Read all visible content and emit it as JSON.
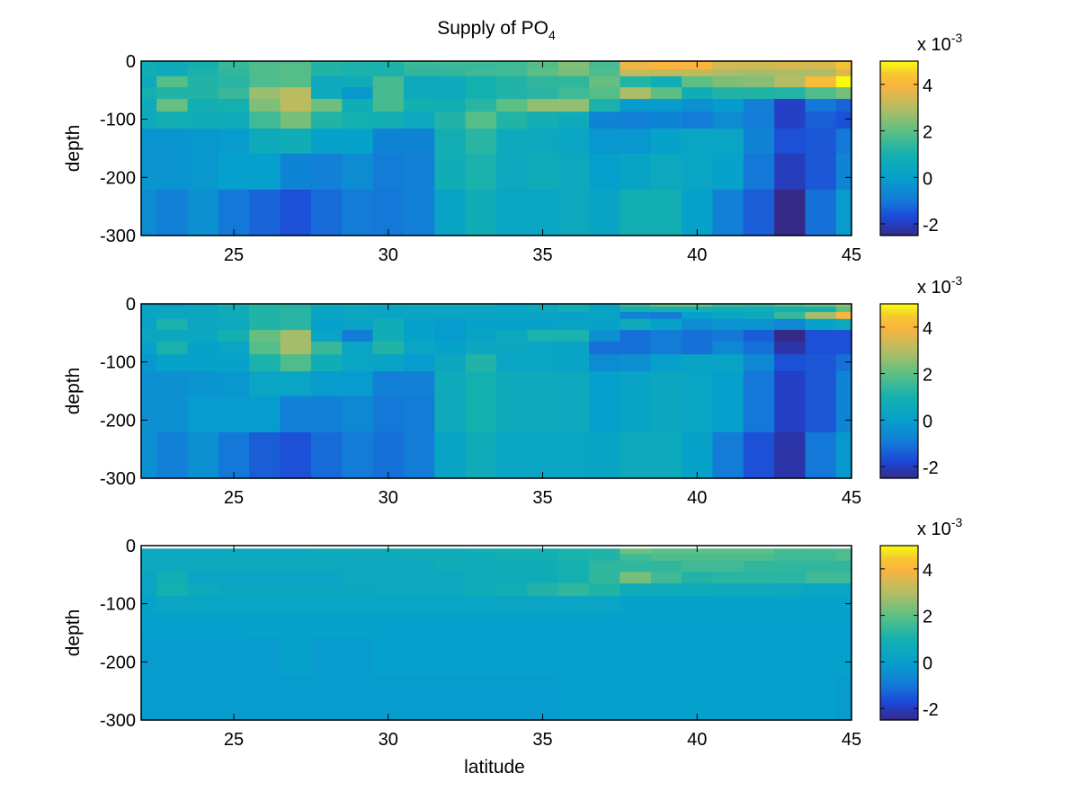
{
  "chart_data": {
    "type": "heatmap",
    "title": "Supply of PO",
    "title_subscript": "4",
    "xlabel": "latitude",
    "ylabel": "depth",
    "xlim": [
      22,
      45
    ],
    "ylim": [
      -300,
      0
    ],
    "xticks": [
      25,
      30,
      35,
      40,
      45
    ],
    "xtick_labels": [
      "25",
      "30",
      "35",
      "40",
      "45"
    ],
    "yticks": [
      0,
      -100,
      -200,
      -300
    ],
    "ytick_labels": [
      "0",
      "-100",
      "-200",
      "-300"
    ],
    "colorbar": {
      "colormap": "parula",
      "clim": [
        -2.5,
        5
      ],
      "ticks": [
        -2,
        0,
        2,
        4
      ],
      "tick_labels": [
        "-2",
        "0",
        "2",
        "4"
      ],
      "scale_label": "x 10",
      "scale_exponent": "-3"
    },
    "value_units": "x 1e-3",
    "latitudes": [
      22,
      23,
      24,
      25,
      26,
      27,
      28,
      29,
      30,
      31,
      32,
      33,
      34,
      35,
      36,
      37,
      38,
      39,
      40,
      41,
      42,
      43,
      44,
      45
    ],
    "depth_edges": [
      0,
      -5,
      -14,
      -26,
      -45,
      -65,
      -87,
      -116,
      -159,
      -221,
      -300
    ],
    "panels": [
      {
        "name": "panel-1",
        "values": [
          [
            0.8,
            0.6,
            1.0,
            1.5,
            1.8,
            1.8,
            1.3,
            1.2,
            1.2,
            1.6,
            1.7,
            1.7,
            1.6,
            1.9,
            2.4,
            1.7,
            3.8,
            4.0,
            4.0,
            3.4,
            3.4,
            3.5,
            3.5,
            4.3
          ],
          [
            0.8,
            0.6,
            1.0,
            1.5,
            1.8,
            1.9,
            1.2,
            1.1,
            1.1,
            1.5,
            1.5,
            1.5,
            1.6,
            1.9,
            2.4,
            1.7,
            3.8,
            4.0,
            4.0,
            3.4,
            3.4,
            3.5,
            3.5,
            4.3
          ],
          [
            0.8,
            0.6,
            1.1,
            1.4,
            1.8,
            1.9,
            1.2,
            1.1,
            1.1,
            1.4,
            1.4,
            1.6,
            1.6,
            2.0,
            2.3,
            1.8,
            3.2,
            3.2,
            3.2,
            2.9,
            2.8,
            2.9,
            2.9,
            3.6
          ],
          [
            0.6,
            1.9,
            1.2,
            1.3,
            1.8,
            1.9,
            0.5,
            0.7,
            1.7,
            0.5,
            0.6,
            1.0,
            1.2,
            1.4,
            1.4,
            2.1,
            1.2,
            0.8,
            2.0,
            2.4,
            2.5,
            3.0,
            4.2,
            5.0
          ],
          [
            1.0,
            1.2,
            1.2,
            1.5,
            2.7,
            3.1,
            0.6,
            -0.2,
            1.7,
            0.6,
            0.6,
            1.0,
            1.2,
            1.3,
            1.6,
            1.9,
            2.9,
            2.0,
            0.8,
            1.2,
            1.2,
            1.2,
            1.8,
            2.3
          ],
          [
            0.6,
            2.1,
            0.9,
            1.0,
            2.4,
            3.1,
            2.2,
            0.8,
            1.7,
            1.0,
            0.9,
            1.3,
            2.0,
            2.6,
            2.6,
            1.1,
            -0.1,
            -0.1,
            -0.4,
            -0.1,
            -0.8,
            -1.9,
            -1.0,
            -1.3
          ],
          [
            0.6,
            0.9,
            0.8,
            0.7,
            1.6,
            2.3,
            1.2,
            1.0,
            0.9,
            0.5,
            1.2,
            1.9,
            1.2,
            0.9,
            0.6,
            -0.7,
            -0.8,
            -0.7,
            -0.9,
            -0.5,
            -0.9,
            -1.9,
            -1.4,
            -1.6
          ],
          [
            -0.3,
            -0.3,
            -0.2,
            -0.1,
            0.6,
            0.8,
            0.1,
            0.1,
            -0.7,
            -0.7,
            0.9,
            1.3,
            0.6,
            0.5,
            0.3,
            -0.2,
            -0.2,
            0.1,
            0.3,
            0.3,
            -0.7,
            -1.6,
            -1.5,
            -1.0
          ],
          [
            -0.3,
            -0.3,
            -0.2,
            0.0,
            0.0,
            -0.7,
            -0.8,
            -0.5,
            -0.9,
            -0.8,
            0.8,
            1.1,
            0.5,
            0.7,
            0.5,
            0.0,
            0.2,
            0.5,
            0.3,
            0.1,
            -1.0,
            -2.0,
            -1.5,
            -0.7
          ],
          [
            -0.5,
            -0.8,
            -0.4,
            -1.0,
            -1.3,
            -1.6,
            -1.2,
            -0.9,
            -1.0,
            -0.8,
            0.2,
            0.8,
            0.3,
            0.3,
            0.5,
            0.2,
            0.9,
            0.9,
            0.1,
            -0.8,
            -1.4,
            -2.5,
            -1.1,
            -0.1
          ]
        ]
      },
      {
        "name": "panel-2",
        "values": [
          [
            0.0,
            0.0,
            0.4,
            1.0,
            1.2,
            1.2,
            0.6,
            0.6,
            0.6,
            0.6,
            0.6,
            0.6,
            0.3,
            0.5,
            0.9,
            0.2,
            1.5,
            2.2,
            2.2,
            1.6,
            1.5,
            1.9,
            2.2,
            2.7
          ],
          [
            0.2,
            0.4,
            0.4,
            0.7,
            1.2,
            1.3,
            0.3,
            0.4,
            0.3,
            0.4,
            0.4,
            0.4,
            0.3,
            0.5,
            0.9,
            0.2,
            1.0,
            1.0,
            1.0,
            0.8,
            0.8,
            1.0,
            1.0,
            2.0
          ],
          [
            0.2,
            0.4,
            0.4,
            0.7,
            1.2,
            1.3,
            0.3,
            0.4,
            0.3,
            0.3,
            0.2,
            0.3,
            0.2,
            0.2,
            0.1,
            0.2,
            -0.7,
            -0.9,
            0.0,
            0.3,
            0.5,
            1.5,
            2.8,
            4.0
          ],
          [
            0.2,
            1.1,
            0.4,
            0.5,
            1.2,
            1.3,
            0.0,
            0.2,
            0.8,
            0.0,
            -0.1,
            0.1,
            0.1,
            0.1,
            0.2,
            0.1,
            0.6,
            0.1,
            -0.5,
            -0.3,
            -0.3,
            -0.6,
            0.1,
            0.5
          ],
          [
            0.4,
            0.4,
            0.4,
            1.0,
            2.1,
            2.8,
            0.2,
            -0.9,
            0.8,
            0.1,
            -0.1,
            0.2,
            0.5,
            1.1,
            1.1,
            -0.4,
            -1.1,
            -0.9,
            -1.1,
            -1.0,
            -1.4,
            -2.5,
            -1.6,
            -1.6
          ],
          [
            0.1,
            1.1,
            0.1,
            0.3,
            1.9,
            2.8,
            1.5,
            0.3,
            1.2,
            0.3,
            0.1,
            0.4,
            0.4,
            0.3,
            0.2,
            -1.1,
            -1.1,
            -0.9,
            -1.1,
            -0.6,
            -1.1,
            -2.2,
            -1.6,
            -1.6
          ],
          [
            -0.2,
            0.1,
            0.1,
            0.1,
            1.1,
            1.8,
            0.8,
            0.3,
            0.2,
            -0.1,
            0.4,
            1.2,
            0.3,
            0.3,
            0.2,
            -0.5,
            -0.4,
            0.0,
            0.2,
            0.2,
            -0.6,
            -1.6,
            -1.5,
            -1.1
          ],
          [
            -0.4,
            -0.4,
            -0.3,
            -0.2,
            0.3,
            0.3,
            -0.1,
            -0.1,
            -0.8,
            -0.8,
            0.6,
            1.0,
            0.6,
            0.6,
            0.5,
            0.0,
            0.2,
            0.4,
            0.3,
            0.0,
            -1.0,
            -1.9,
            -1.5,
            -0.7
          ],
          [
            -0.4,
            -0.4,
            -0.1,
            -0.1,
            -0.1,
            -0.8,
            -0.8,
            -0.6,
            -1.0,
            -0.9,
            0.6,
            1.0,
            0.6,
            0.6,
            0.5,
            0.0,
            0.2,
            0.4,
            0.3,
            0.0,
            -1.0,
            -1.9,
            -1.5,
            -0.7
          ],
          [
            -0.4,
            -0.8,
            -0.4,
            -1.0,
            -1.4,
            -1.6,
            -1.2,
            -0.9,
            -1.1,
            -0.9,
            0.2,
            0.7,
            0.3,
            0.3,
            0.3,
            0.2,
            0.6,
            0.6,
            0.1,
            -0.9,
            -1.6,
            -2.2,
            -1.0,
            -0.2
          ]
        ]
      },
      {
        "name": "panel-3",
        "values": [
          [
            null,
            null,
            null,
            null,
            null,
            null,
            null,
            null,
            null,
            null,
            null,
            null,
            null,
            null,
            null,
            null,
            null,
            null,
            null,
            null,
            null,
            null,
            null,
            null
          ],
          [
            0.5,
            0.5,
            0.5,
            0.5,
            0.5,
            0.5,
            0.7,
            0.7,
            0.7,
            0.7,
            0.7,
            0.9,
            1.0,
            1.0,
            1.1,
            1.2,
            2.2,
            2.0,
            2.0,
            2.0,
            2.0,
            1.7,
            1.7,
            1.8
          ],
          [
            0.5,
            0.5,
            0.5,
            0.5,
            0.5,
            0.5,
            0.5,
            0.6,
            0.6,
            0.7,
            0.7,
            0.7,
            0.9,
            0.9,
            1.1,
            1.2,
            1.6,
            1.8,
            1.8,
            1.8,
            1.8,
            1.6,
            1.6,
            1.8
          ],
          [
            0.5,
            0.5,
            0.5,
            0.5,
            0.5,
            0.5,
            0.5,
            0.5,
            0.5,
            0.5,
            0.7,
            0.7,
            0.8,
            0.8,
            1.0,
            1.4,
            1.4,
            1.4,
            1.6,
            1.6,
            1.4,
            1.4,
            1.4,
            1.4
          ],
          [
            0.3,
            0.9,
            0.3,
            0.3,
            0.3,
            0.3,
            0.3,
            0.5,
            0.5,
            0.5,
            0.5,
            0.7,
            0.7,
            0.7,
            1.0,
            1.4,
            2.3,
            1.6,
            1.2,
            1.3,
            1.3,
            1.3,
            1.6,
            1.6
          ],
          [
            0.3,
            1.0,
            0.6,
            0.4,
            0.4,
            0.4,
            0.4,
            0.4,
            0.5,
            0.5,
            0.5,
            0.7,
            0.9,
            1.2,
            1.4,
            1.2,
            0.7,
            0.7,
            0.7,
            0.6,
            0.6,
            0.5,
            0.3,
            0.3
          ],
          [
            0.1,
            0.3,
            0.3,
            0.3,
            0.3,
            0.3,
            0.3,
            0.3,
            0.3,
            0.3,
            0.3,
            0.3,
            0.3,
            0.3,
            0.3,
            0.3,
            0.1,
            0.1,
            0.1,
            0.1,
            0.1,
            0.1,
            0.1,
            0.1
          ],
          [
            0.0,
            0.0,
            0.0,
            0.0,
            0.1,
            0.1,
            0.1,
            0.1,
            0.0,
            0.0,
            0.0,
            0.0,
            0.0,
            0.0,
            0.0,
            0.0,
            0.0,
            0.0,
            0.0,
            0.0,
            0.0,
            0.0,
            0.0,
            0.0
          ],
          [
            -0.1,
            -0.1,
            -0.1,
            -0.1,
            -0.1,
            0.1,
            -0.1,
            -0.1,
            0.0,
            0.0,
            0.0,
            0.0,
            0.0,
            0.0,
            0.0,
            0.0,
            0.0,
            0.0,
            0.0,
            0.0,
            0.0,
            0.0,
            0.0,
            0.0
          ],
          [
            -0.1,
            -0.1,
            -0.1,
            -0.1,
            -0.1,
            -0.1,
            -0.1,
            -0.1,
            -0.1,
            -0.1,
            -0.1,
            -0.1,
            -0.1,
            -0.1,
            0.0,
            0.0,
            0.0,
            0.0,
            0.0,
            0.0,
            0.0,
            0.0,
            0.0,
            -0.1
          ]
        ]
      }
    ]
  }
}
